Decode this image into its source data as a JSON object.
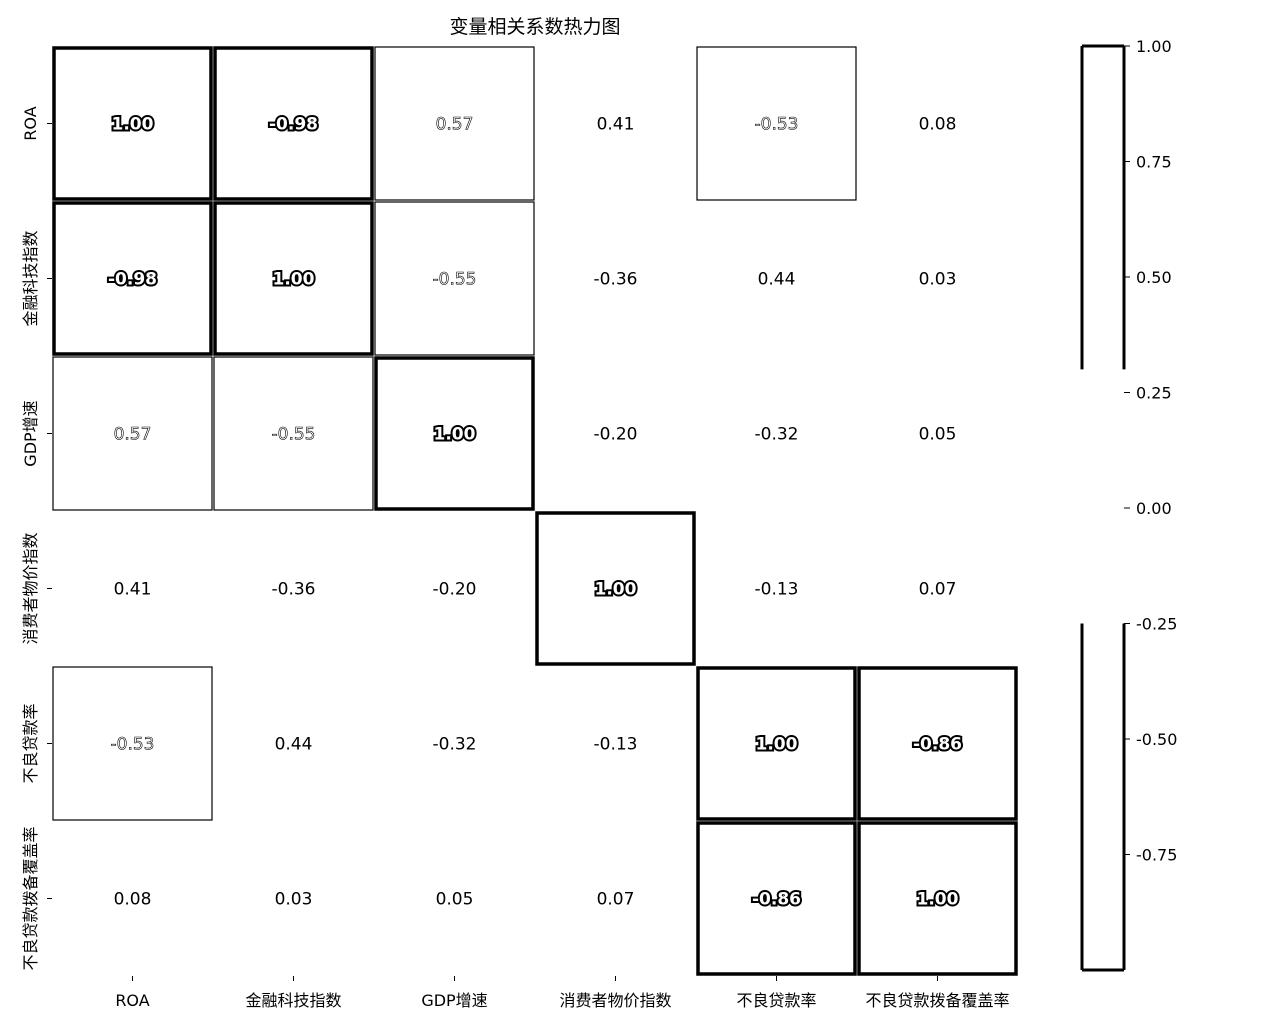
{
  "chart_data": {
    "type": "heatmap",
    "title": "变量相关系数热力图",
    "xlabel": "",
    "ylabel": "",
    "x_categories": [
      "ROA",
      "金融科技指数",
      "GDP增速",
      "消费者物价指数",
      "不良贷款率",
      "不良贷款拨备覆盖率"
    ],
    "y_categories": [
      "ROA",
      "金融科技指数",
      "GDP增速",
      "消费者物价指数",
      "不良贷款率",
      "不良贷款拨备覆盖率"
    ],
    "values": [
      [
        1.0,
        -0.98,
        0.57,
        0.41,
        -0.53,
        0.08
      ],
      [
        -0.98,
        1.0,
        -0.55,
        -0.36,
        0.44,
        0.03
      ],
      [
        0.57,
        -0.55,
        1.0,
        -0.2,
        -0.32,
        0.05
      ],
      [
        0.41,
        -0.36,
        -0.2,
        1.0,
        -0.13,
        0.07
      ],
      [
        -0.53,
        0.44,
        -0.32,
        -0.13,
        1.0,
        -0.86
      ],
      [
        0.08,
        0.03,
        0.05,
        0.07,
        -0.86,
        1.0
      ]
    ],
    "value_labels": [
      [
        "1.00",
        "-0.98",
        "0.57",
        "0.41",
        "-0.53",
        "0.08"
      ],
      [
        "-0.98",
        "1.00",
        "-0.55",
        "-0.36",
        "0.44",
        "0.03"
      ],
      [
        "0.57",
        "-0.55",
        "1.00",
        "-0.20",
        "-0.32",
        "0.05"
      ],
      [
        "0.41",
        "-0.36",
        "-0.20",
        "1.00",
        "-0.13",
        "0.07"
      ],
      [
        "-0.53",
        "0.44",
        "-0.32",
        "-0.13",
        "1.00",
        "-0.86"
      ],
      [
        "0.08",
        "0.03",
        "0.05",
        "0.07",
        "-0.86",
        "1.00"
      ]
    ],
    "colorbar": {
      "range": [
        -1.0,
        1.0
      ],
      "ticks": [
        1.0,
        0.75,
        0.5,
        0.25,
        0.0,
        -0.25,
        -0.5,
        -0.75
      ],
      "tick_labels": [
        "1.00",
        "0.75",
        "0.50",
        "0.25",
        "0.00",
        "-0.25",
        "-0.50",
        "-0.75"
      ],
      "placement": "right"
    },
    "grid": false,
    "legend": "none"
  }
}
